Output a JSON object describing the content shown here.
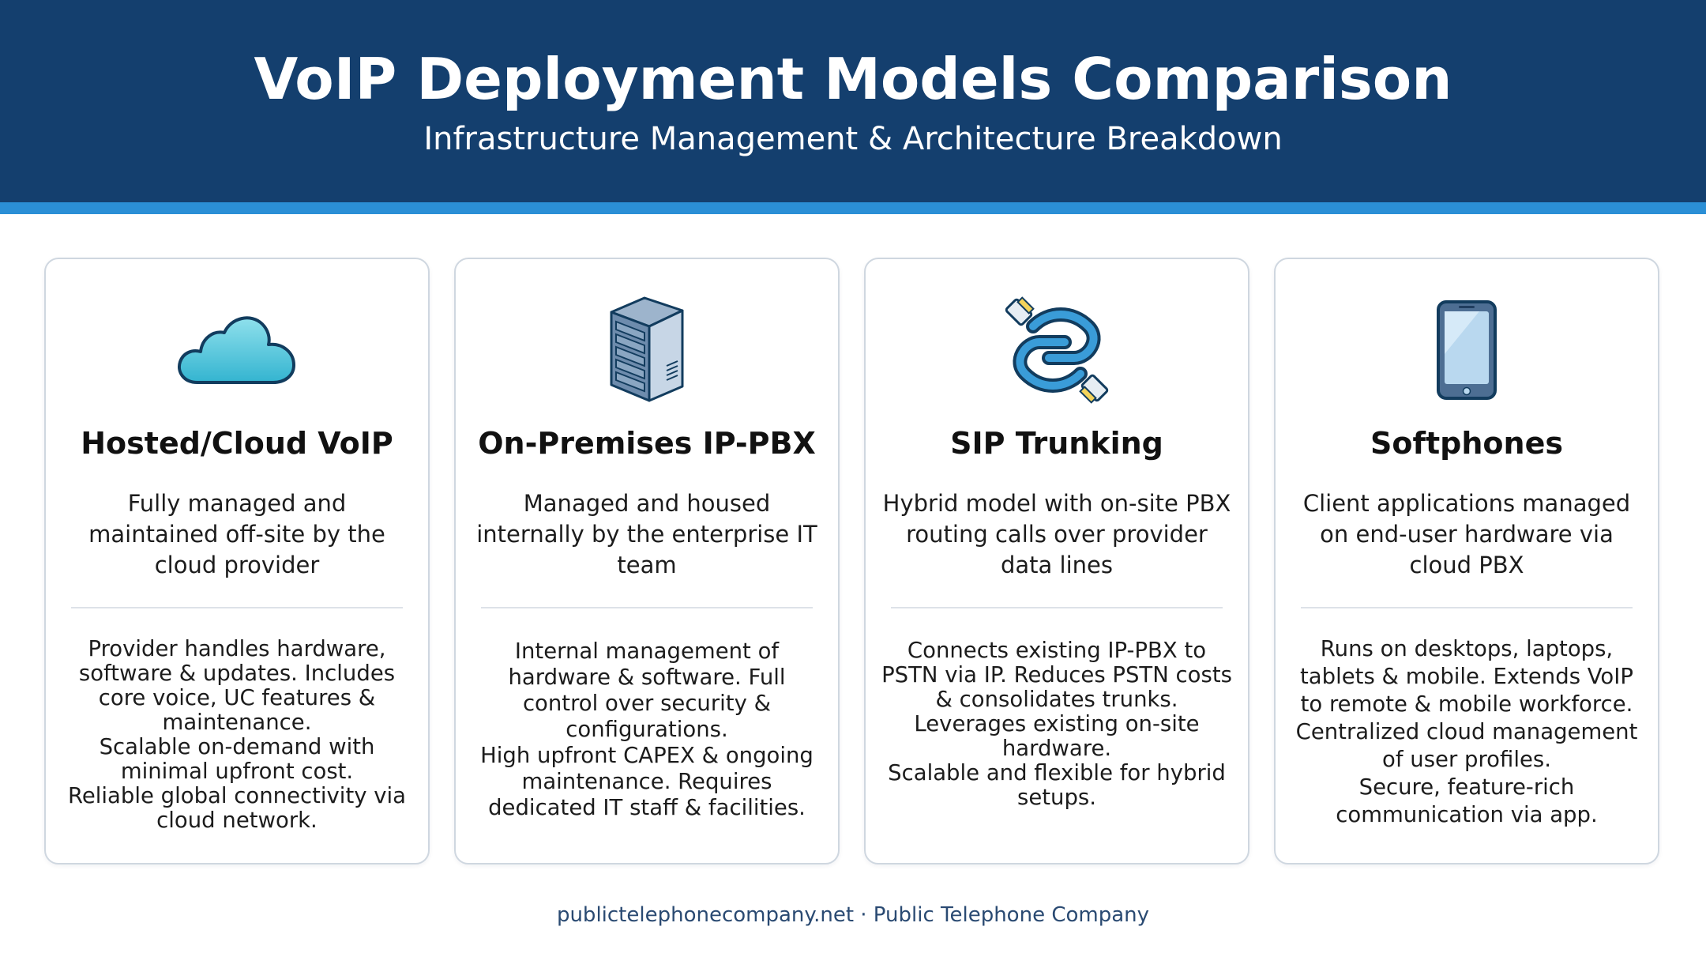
{
  "header": {
    "title": "VoIP Deployment Models Comparison",
    "subtitle": "Infrastructure Management & Architecture Breakdown"
  },
  "colors": {
    "header_bg": "#143f6e",
    "header_stripe": "#2b8fd6",
    "card_border": "#cfd7e0",
    "footer_text": "#2a4a72"
  },
  "cards": [
    {
      "icon": "cloud-icon",
      "title": "Hosted/Cloud VoIP",
      "summary": "Fully managed and maintained off-site by the cloud provider",
      "details": [
        "Provider handles hardware, software & updates. Includes core voice, UC features & maintenance.",
        "Scalable on-demand with minimal upfront cost.",
        "Reliable global connectivity via cloud network."
      ]
    },
    {
      "icon": "server-icon",
      "title": "On-Premises IP-PBX",
      "summary": "Managed and housed internally by the enterprise IT team",
      "details": [
        "Internal management of hardware & software. Full control over security & configurations.",
        "High upfront CAPEX & ongoing maintenance. Requires dedicated IT staff & facilities."
      ]
    },
    {
      "icon": "ethernet-cable-icon",
      "title": "SIP Trunking",
      "summary": "Hybrid model with on-site PBX routing calls over provider data lines",
      "details": [
        "Connects existing IP-PBX to PSTN via IP. Reduces PSTN costs & consolidates trunks.",
        "Leverages existing on-site hardware.",
        "Scalable and flexible for hybrid setups."
      ]
    },
    {
      "icon": "smartphone-icon",
      "title": "Softphones",
      "summary": "Client applications managed on end-user hardware via cloud PBX",
      "details": [
        "Runs on desktops, laptops, tablets & mobile. Extends VoIP to remote & mobile workforce.",
        "Centralized cloud management of user profiles.",
        "Secure, feature-rich communication via app."
      ]
    }
  ],
  "footer": {
    "text": "publictelephonecompany.net · Public Telephone Company"
  }
}
